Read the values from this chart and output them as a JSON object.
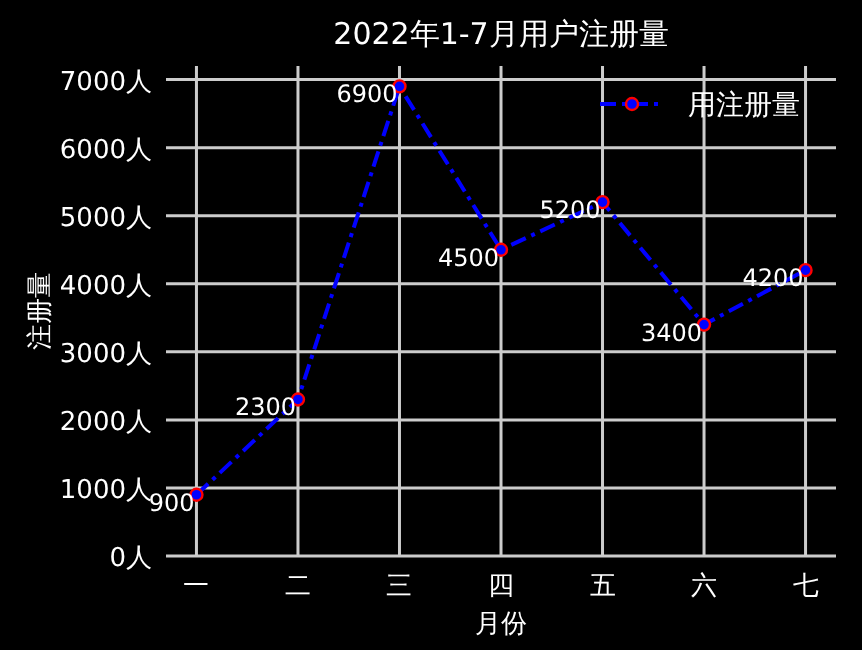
{
  "chart_data": {
    "type": "line",
    "title": "2022年1-7月用户注册量",
    "xlabel": "月份",
    "ylabel": "注册量",
    "categories": [
      "一",
      "二",
      "三",
      "四",
      "五",
      "六",
      "七"
    ],
    "series": [
      {
        "name": "用注册量",
        "color": "#0000ff",
        "values": [
          900,
          2300,
          6900,
          4500,
          5200,
          3400,
          4200
        ]
      }
    ],
    "ylim": [
      0,
      7200
    ],
    "yticks": [
      {
        "value": 0,
        "label": "0人"
      },
      {
        "value": 1000,
        "label": "1000人"
      },
      {
        "value": 2000,
        "label": "2000人"
      },
      {
        "value": 3000,
        "label": "3000人"
      },
      {
        "value": 4000,
        "label": "4000人"
      },
      {
        "value": 5000,
        "label": "5000人"
      },
      {
        "value": 6000,
        "label": "6000人"
      },
      {
        "value": 7000,
        "label": "7000人"
      }
    ],
    "grid": true,
    "legend": "top right",
    "marker": "circle",
    "line_style": "dashed",
    "data_labels": true
  }
}
